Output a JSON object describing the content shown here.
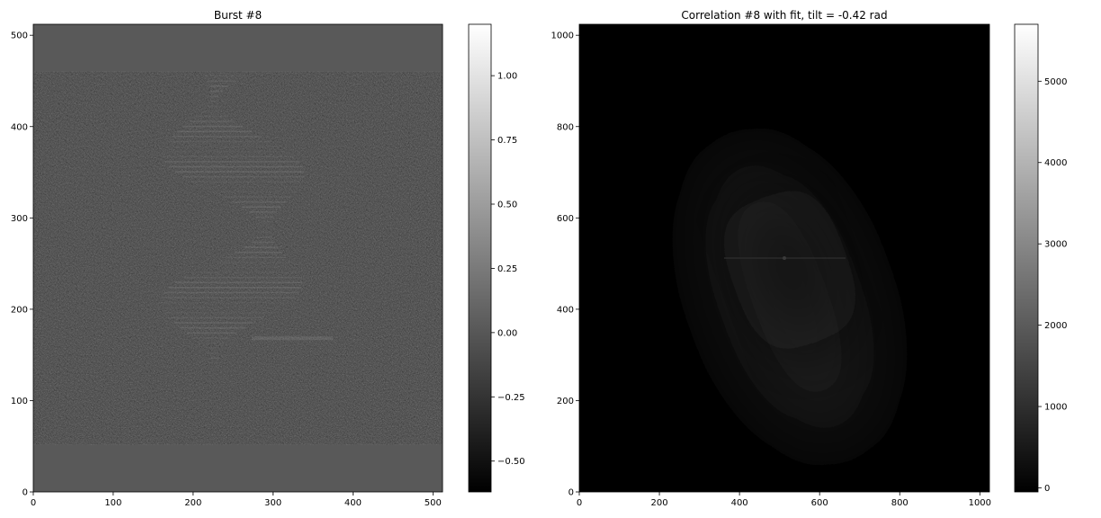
{
  "chart_data": [
    {
      "type": "heatmap",
      "title": "Burst #8",
      "xlim": [
        0,
        512
      ],
      "ylim": [
        0,
        512
      ],
      "xticks": [
        0,
        100,
        200,
        300,
        400,
        500
      ],
      "yticks": [
        0,
        100,
        200,
        300,
        400,
        500
      ],
      "colormap": "gray",
      "colorbar": {
        "range": [
          -0.62,
          1.2
        ],
        "ticks": [
          -0.5,
          -0.25,
          0.0,
          0.25,
          0.5,
          0.75,
          1.0
        ],
        "tick_labels": [
          "−0.50",
          "−0.25",
          "0.00",
          "0.25",
          "0.50",
          "0.75",
          "1.00"
        ]
      },
      "padding_value": 0.0,
      "signal_rows": [
        52,
        460
      ]
    },
    {
      "type": "heatmap",
      "title": "Correlation #8 with fit, tilt = -0.42 rad",
      "xlim": [
        0,
        1024
      ],
      "ylim": [
        0,
        1024
      ],
      "xticks": [
        0,
        200,
        400,
        600,
        800,
        1000
      ],
      "yticks": [
        0,
        200,
        400,
        600,
        800,
        1000
      ],
      "colormap": "gray",
      "colorbar": {
        "range": [
          -50,
          5700
        ],
        "ticks": [
          0,
          1000,
          2000,
          3000,
          4000,
          5000
        ],
        "tick_labels": [
          "0",
          "1000",
          "2000",
          "3000",
          "4000",
          "5000"
        ]
      },
      "peak": {
        "x": 512,
        "y": 512
      }
    }
  ]
}
